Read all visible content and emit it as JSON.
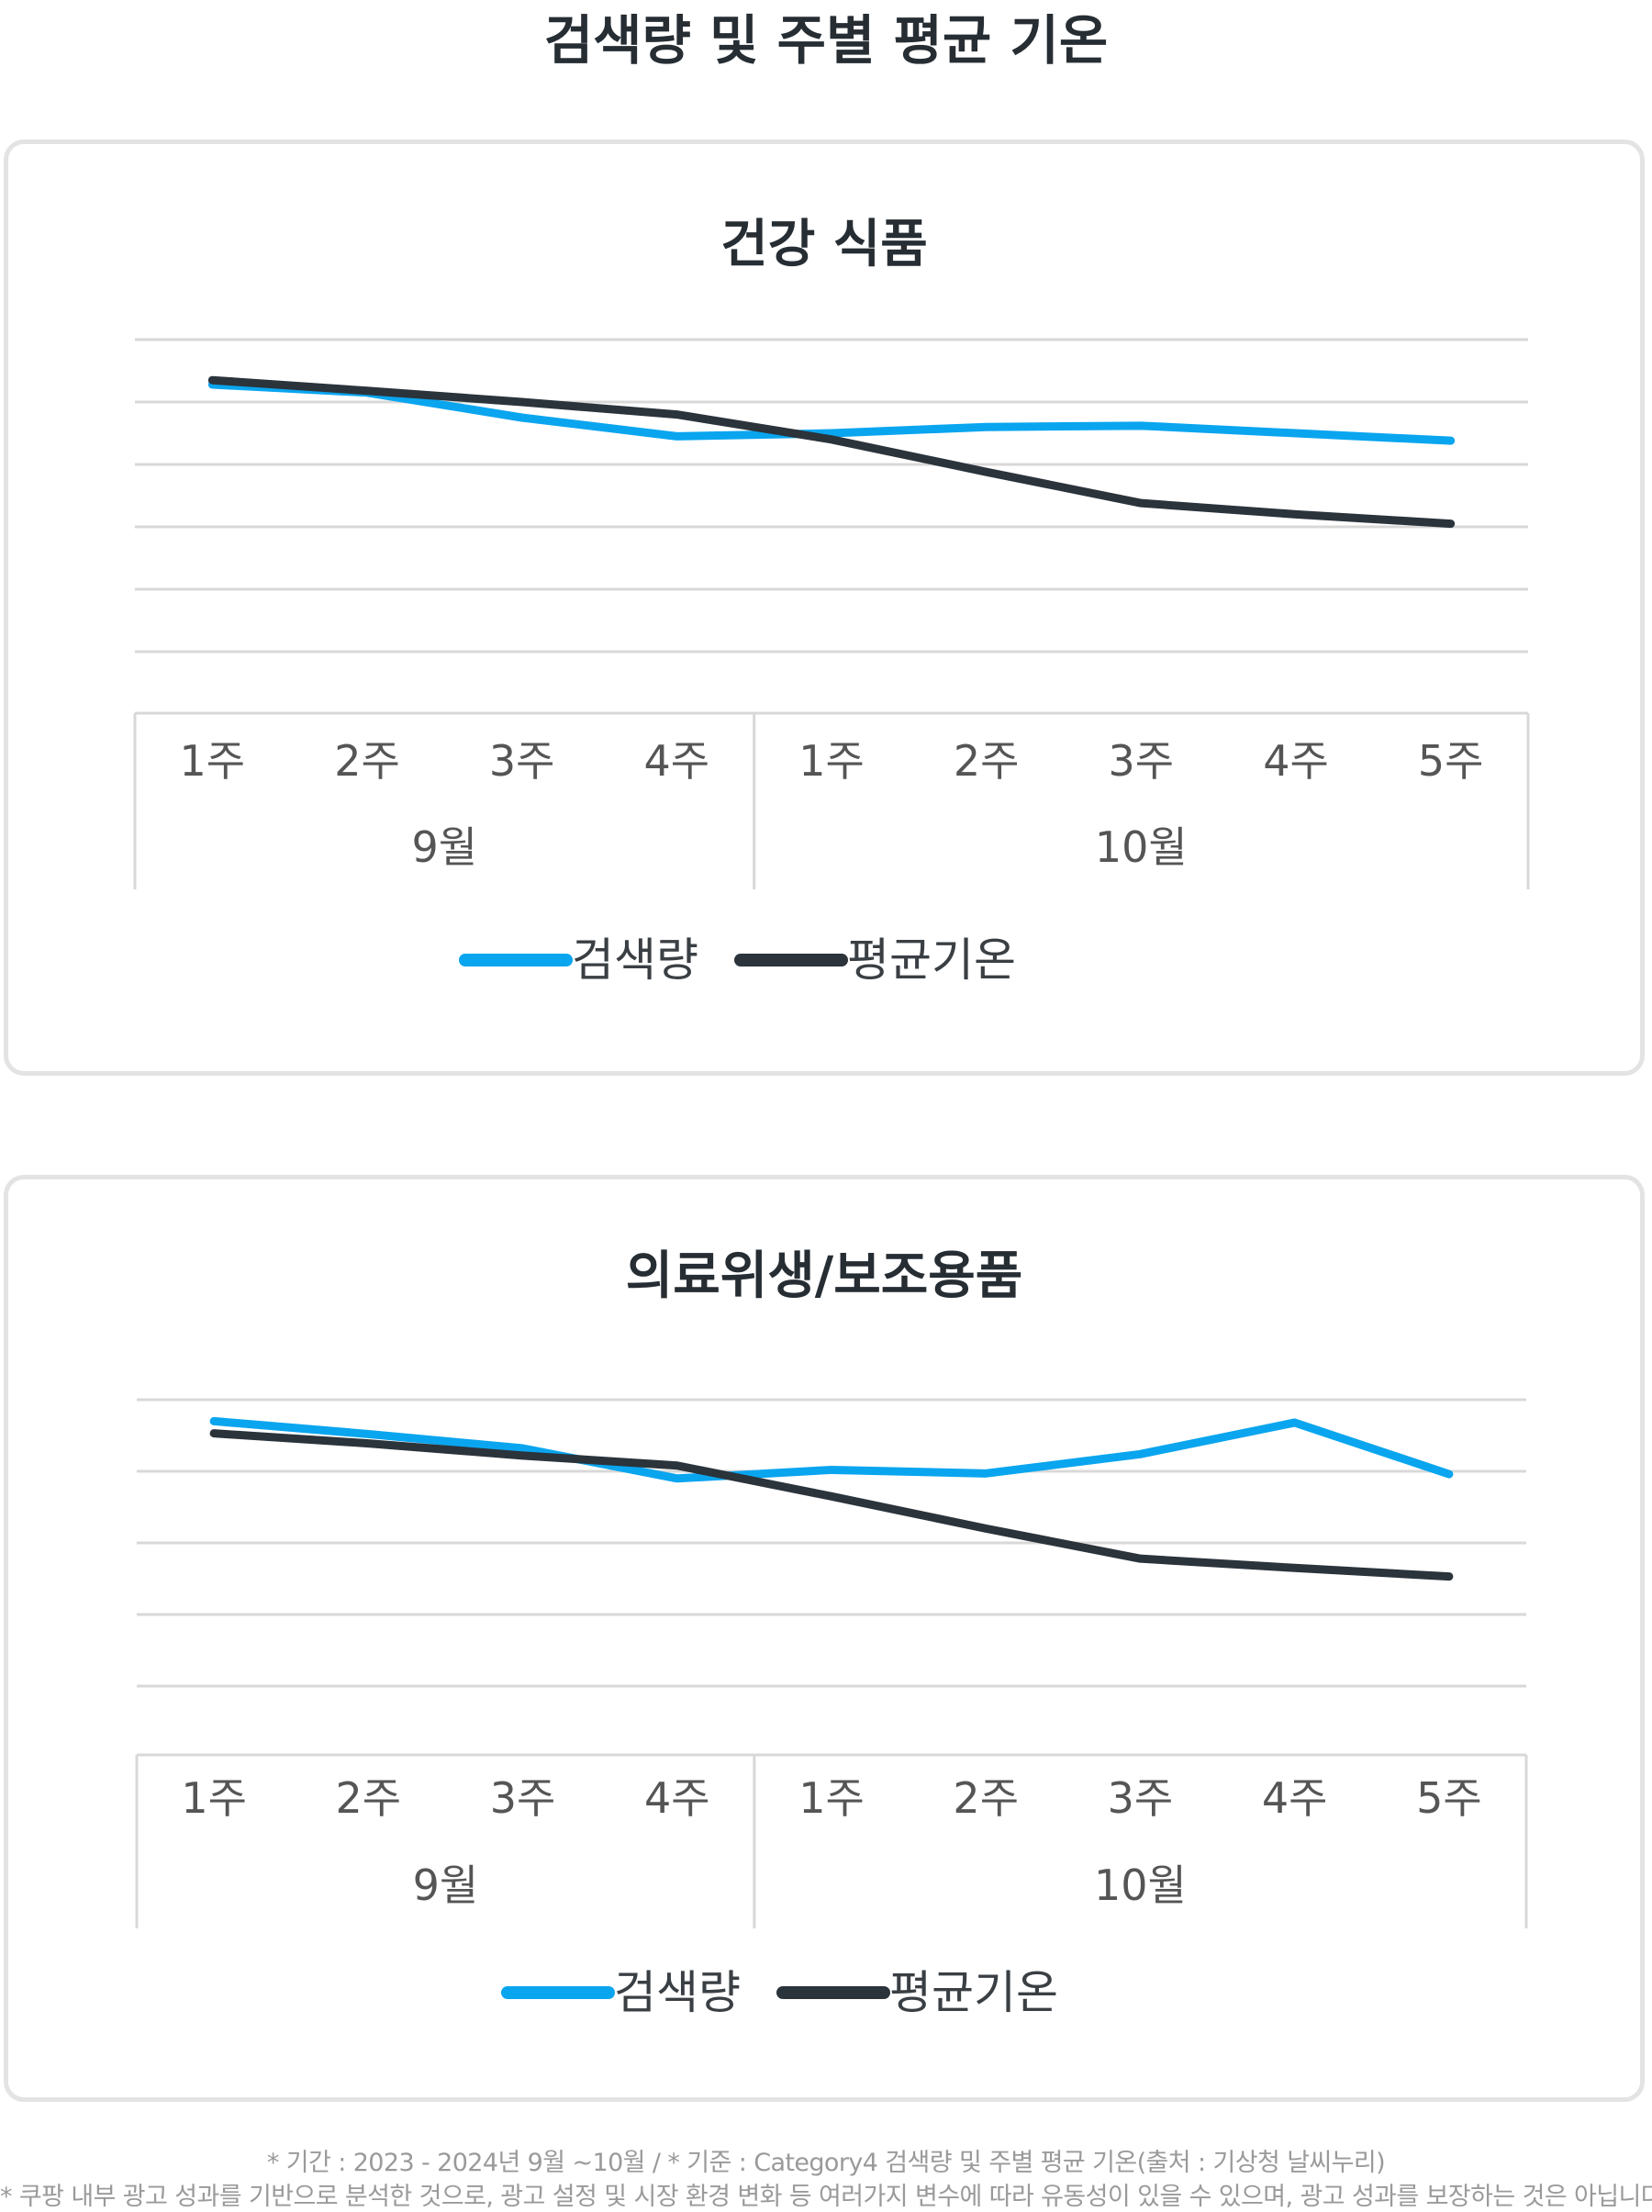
{
  "title": "검색량 및 주별 평균 기온",
  "colors": {
    "search": "#0aa5ef",
    "temperature": "#2b333b",
    "grid": "#d8d8d8",
    "axis_text": "#555555"
  },
  "legend": {
    "search": "검색량",
    "temperature": "평균기온"
  },
  "footer": {
    "line1": "* 기간 : 2023 - 2024년 9월 ~10월  / * 기준 : Category4 검색량 및 주별 평균 기온(출처 : 기상청 날씨누리)",
    "line2": "* 쿠팡 내부 광고 성과를 기반으로 분석한 것으로, 광고 설정 및 시장 환경 변화 등 여러가지 변수에 따라 유동성이 있을 수 있으며, 광고 성과를 보장하는 것은 아닙니다."
  },
  "chart_data": [
    {
      "type": "line",
      "title": "건강 식품",
      "categories": [
        "1주",
        "2주",
        "3주",
        "4주",
        "1주",
        "2주",
        "3주",
        "4주",
        "5주"
      ],
      "groups": [
        {
          "label": "9월",
          "count": 4
        },
        {
          "label": "10월",
          "count": 5
        }
      ],
      "ylim": [
        0,
        5
      ],
      "grid": true,
      "legend_position": "bottom",
      "series": [
        {
          "name": "검색량",
          "values": [
            4.28,
            4.15,
            3.75,
            3.45,
            3.5,
            3.6,
            3.62,
            3.5,
            3.38
          ]
        },
        {
          "name": "평균기온",
          "values": [
            4.35,
            4.18,
            4.0,
            3.8,
            3.4,
            2.88,
            2.38,
            2.2,
            2.05
          ]
        }
      ]
    },
    {
      "type": "line",
      "title": "의료위생/보조용품",
      "categories": [
        "1주",
        "2주",
        "3주",
        "4주",
        "1주",
        "2주",
        "3주",
        "4주",
        "5주"
      ],
      "groups": [
        {
          "label": "9월",
          "count": 4
        },
        {
          "label": "10월",
          "count": 5
        }
      ],
      "ylim": [
        0,
        4
      ],
      "grid": true,
      "legend_position": "bottom",
      "series": [
        {
          "name": "검색량",
          "values": [
            3.7,
            3.52,
            3.32,
            2.9,
            3.02,
            2.97,
            3.24,
            3.68,
            2.96
          ]
        },
        {
          "name": "평균기온",
          "values": [
            3.53,
            3.39,
            3.22,
            3.08,
            2.65,
            2.2,
            1.78,
            1.65,
            1.53
          ]
        }
      ]
    }
  ]
}
